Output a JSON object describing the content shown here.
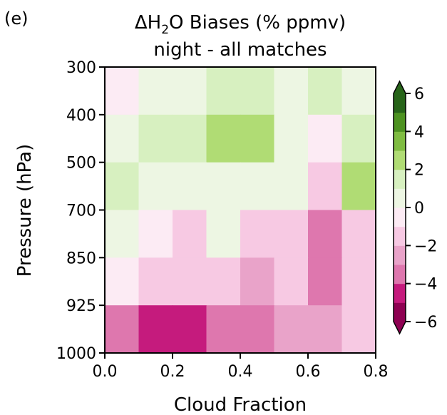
{
  "chart_data": {
    "type": "heatmap",
    "panel_label": "(e)",
    "title_prefix": "ΔH",
    "title_sub": "2",
    "title_suffix": "O Biases (% ppmv)",
    "subtitle": "night - all matches",
    "xlabel": "Cloud Fraction",
    "ylabel": "Pressure (hPa)",
    "x_ticks": [
      "0.0",
      "0.2",
      "0.4",
      "0.6",
      "0.8"
    ],
    "y_ticks": [
      "300",
      "400",
      "500",
      "700",
      "850",
      "925",
      "1000"
    ],
    "x_edges": [
      0.0,
      0.1,
      0.2,
      0.3,
      0.4,
      0.5,
      0.6,
      0.7,
      0.8
    ],
    "y_levels": [
      "300",
      "400",
      "500",
      "700",
      "850",
      "925",
      "1000"
    ],
    "colorbar": {
      "range": [
        -6,
        6
      ],
      "extend": "both",
      "boundaries": [
        -6,
        -5,
        -4,
        -3,
        -2,
        -1,
        0,
        1,
        2,
        3,
        4,
        5,
        6
      ],
      "tick_values": [
        6,
        4,
        2,
        0,
        -2,
        -4,
        -6
      ],
      "tick_labels": [
        "6",
        "4",
        "2",
        "0",
        "−2",
        "−4",
        "−6"
      ],
      "colors": [
        "#8e0152",
        "#c51b7d",
        "#de77ae",
        "#e9a3c9",
        "#f7c9e3",
        "#fcebf4",
        "#edf6e3",
        "#d7f0c0",
        "#b0dc74",
        "#7fbc41",
        "#4d9221",
        "#276419"
      ],
      "under_color": "#8e0152",
      "over_color": "#276419"
    },
    "rows": [
      {
        "layer": "300-400",
        "values": [
          -0.5,
          0.5,
          0.5,
          1.5,
          1.5,
          0.5,
          1.5,
          0.5
        ]
      },
      {
        "layer": "400-500",
        "values": [
          0.5,
          1.5,
          1.5,
          2.5,
          2.5,
          0.5,
          -0.5,
          1.5
        ]
      },
      {
        "layer": "500-700",
        "values": [
          1.5,
          0.5,
          0.5,
          0.5,
          0.5,
          0.5,
          -1.5,
          2.5
        ]
      },
      {
        "layer": "700-850",
        "values": [
          0.5,
          -0.5,
          -1.5,
          0.5,
          -1.5,
          -1.5,
          -3.5,
          -1.5
        ]
      },
      {
        "layer": "850-925",
        "values": [
          -0.5,
          -1.5,
          -1.5,
          -1.5,
          -2.5,
          -1.5,
          -3.5,
          -1.5
        ]
      },
      {
        "layer": "925-1000",
        "values": [
          -3.5,
          -4.5,
          -4.5,
          -3.5,
          -3.5,
          -2.5,
          -2.5,
          -1.5
        ]
      }
    ]
  }
}
